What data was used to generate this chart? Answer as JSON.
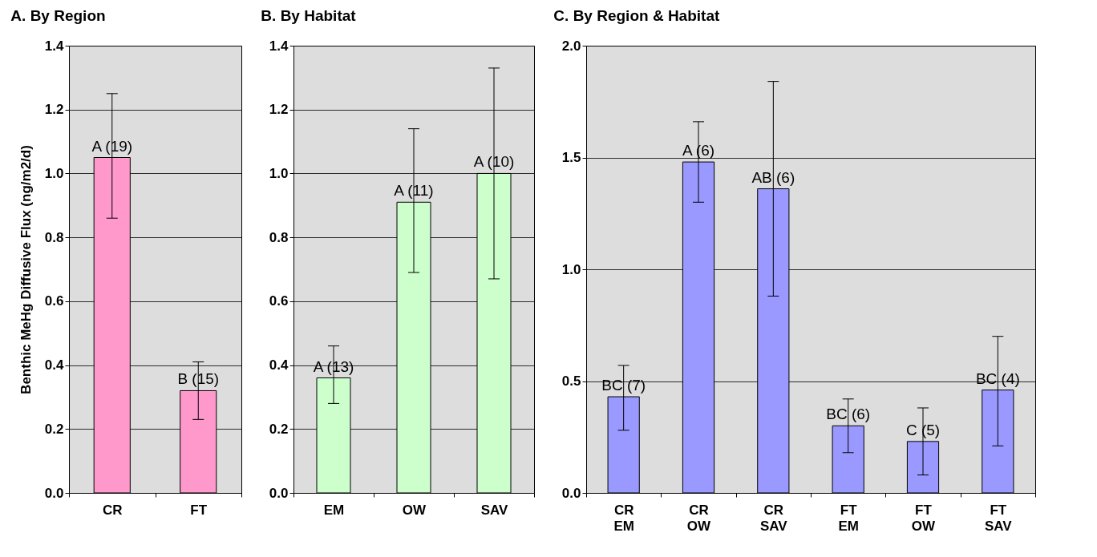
{
  "chart_data": [
    {
      "type": "bar",
      "title": "A. By Region",
      "ylabel": "Benthic MeHg Diffusive Flux (ng/m2/d)",
      "categories": [
        "CR",
        "FT"
      ],
      "series": [
        {
          "color": "#ff99cc",
          "values": [
            1.05,
            0.32
          ],
          "errors": [
            [
              0.86,
              1.25
            ],
            [
              0.23,
              0.41
            ]
          ]
        }
      ],
      "ylim": [
        0,
        1.4
      ],
      "yticks": [
        {
          "value": 0,
          "label": "0.0"
        },
        0.2,
        0.4,
        0.6,
        0.8,
        {
          "value": 1,
          "label": "1.0"
        },
        1.2,
        1.4
      ],
      "grid": "y",
      "annotations": [
        {
          "text": "A (19)",
          "x": "CR",
          "y": 1.05
        },
        {
          "text": "B (15)",
          "x": "FT",
          "y": 0.32
        }
      ]
    },
    {
      "type": "bar",
      "title": "B. By Habitat",
      "categories": [
        "EM",
        "OW",
        "SAV"
      ],
      "series": [
        {
          "color": "#ccffcc",
          "values": [
            0.36,
            0.91,
            1.0
          ],
          "errors": [
            [
              0.28,
              0.46
            ],
            [
              0.69,
              1.14
            ],
            [
              0.67,
              1.33
            ]
          ]
        }
      ],
      "ylim": [
        0,
        1.4
      ],
      "yticks": [
        {
          "value": 0,
          "label": "0.0"
        },
        0.2,
        0.4,
        0.6,
        0.8,
        {
          "value": 1,
          "label": "1.0"
        },
        1.2,
        1.4
      ],
      "grid": "y",
      "annotations": [
        {
          "text": "A (13)",
          "x": "EM",
          "y": 0.36
        },
        {
          "text": "A (11)",
          "x": "OW",
          "y": 0.91
        },
        {
          "text": "A (10)",
          "x": "SAV",
          "y": 1.0
        }
      ]
    },
    {
      "type": "bar",
      "title": "C. By  Region & Habitat",
      "categories": [
        "CR EM",
        "CR OW",
        "CR SAV",
        "FT EM",
        "FT OW",
        "FT SAV"
      ],
      "series": [
        {
          "color": "#9999ff",
          "values": [
            0.43,
            1.48,
            1.36,
            0.3,
            0.23,
            0.46
          ],
          "errors": [
            [
              0.28,
              0.57
            ],
            [
              1.3,
              1.66
            ],
            [
              0.88,
              1.84
            ],
            [
              0.18,
              0.42
            ],
            [
              0.08,
              0.38
            ],
            [
              0.21,
              0.7
            ]
          ]
        }
      ],
      "ylim": [
        0,
        2.0
      ],
      "yticks": [
        {
          "value": 0,
          "label": "0.0"
        },
        0.5,
        {
          "value": 1,
          "label": "1.0"
        },
        1.5,
        {
          "value": 2,
          "label": "2.0"
        }
      ],
      "grid": "y",
      "annotations": [
        {
          "text": "BC (7)",
          "x": "CR EM",
          "y": 0.43
        },
        {
          "text": "A (6)",
          "x": "CR OW",
          "y": 1.48
        },
        {
          "text": "AB (6)",
          "x": "CR SAV",
          "y": 1.36
        },
        {
          "text": "BC (6)",
          "x": "FT EM",
          "y": 0.3
        },
        {
          "text": "C (5)",
          "x": "FT OW",
          "y": 0.23
        },
        {
          "text": "BC (4)",
          "x": "FT SAV",
          "y": 0.46
        }
      ]
    }
  ]
}
